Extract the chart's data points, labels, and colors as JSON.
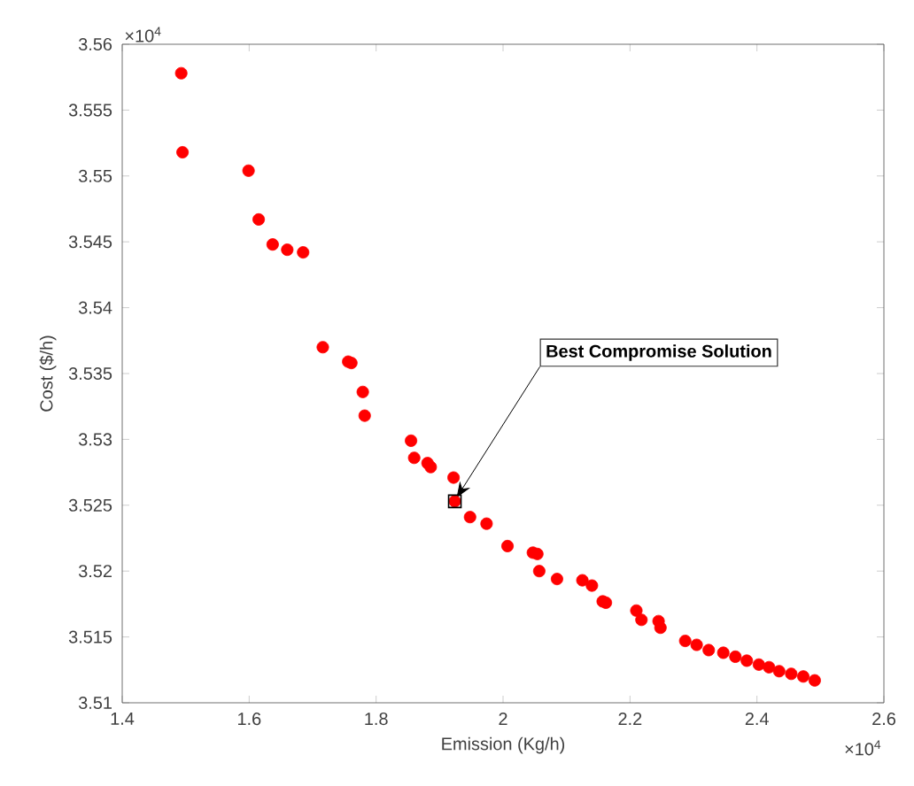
{
  "chart_data": {
    "type": "scatter",
    "xlabel": "Emission (Kg/h)",
    "ylabel": "Cost ($/h)",
    "xlim": [
      1.4,
      2.6
    ],
    "ylim": [
      3.51,
      3.56
    ],
    "xticks": [
      1.4,
      1.6,
      1.8,
      2,
      2.2,
      2.4,
      2.6
    ],
    "yticks": [
      3.51,
      3.515,
      3.52,
      3.525,
      3.53,
      3.535,
      3.54,
      3.545,
      3.55,
      3.555,
      3.56
    ],
    "marker": "circle",
    "series": [
      {
        "color": "#ff0000",
        "x": [
          1.493,
          1.495,
          1.599,
          1.615,
          1.637,
          1.66,
          1.685,
          1.716,
          1.756,
          1.761,
          1.779,
          1.782,
          1.855,
          1.86,
          1.881,
          1.886,
          1.922,
          1.924,
          1.948,
          1.974,
          2.007,
          2.047,
          2.054,
          2.057,
          2.085,
          2.125,
          2.14,
          2.157,
          2.162,
          2.21,
          2.218,
          2.245,
          2.248,
          2.287,
          2.305,
          2.324,
          2.347,
          2.366,
          2.384,
          2.403,
          2.419,
          2.435,
          2.454,
          2.473,
          2.491
        ],
        "values": [
          3.5578,
          3.5518,
          3.5504,
          3.5467,
          3.5448,
          3.5444,
          3.5442,
          3.537,
          3.5359,
          3.5358,
          3.5336,
          3.5318,
          3.5299,
          3.5286,
          3.5282,
          3.5279,
          3.5271,
          3.5253,
          3.5241,
          3.5236,
          3.5219,
          3.5214,
          3.5213,
          3.52,
          3.5194,
          3.5193,
          3.5189,
          3.5177,
          3.5176,
          3.517,
          3.5163,
          3.5162,
          3.5157,
          3.5147,
          3.5144,
          3.514,
          3.5138,
          3.5135,
          3.5132,
          3.5129,
          3.5127,
          3.5124,
          3.5122,
          3.512,
          3.5117
        ]
      },
      {
        "color": "#000000",
        "marker": "square",
        "x": [
          1.924
        ],
        "values": [
          3.5253
        ]
      }
    ],
    "annotations": [
      {
        "text": "Best Compromise Solution",
        "x": 1.924,
        "y": 3.5253
      },
      "×10$^{4}$",
      "×10$^{4}$"
    ]
  }
}
